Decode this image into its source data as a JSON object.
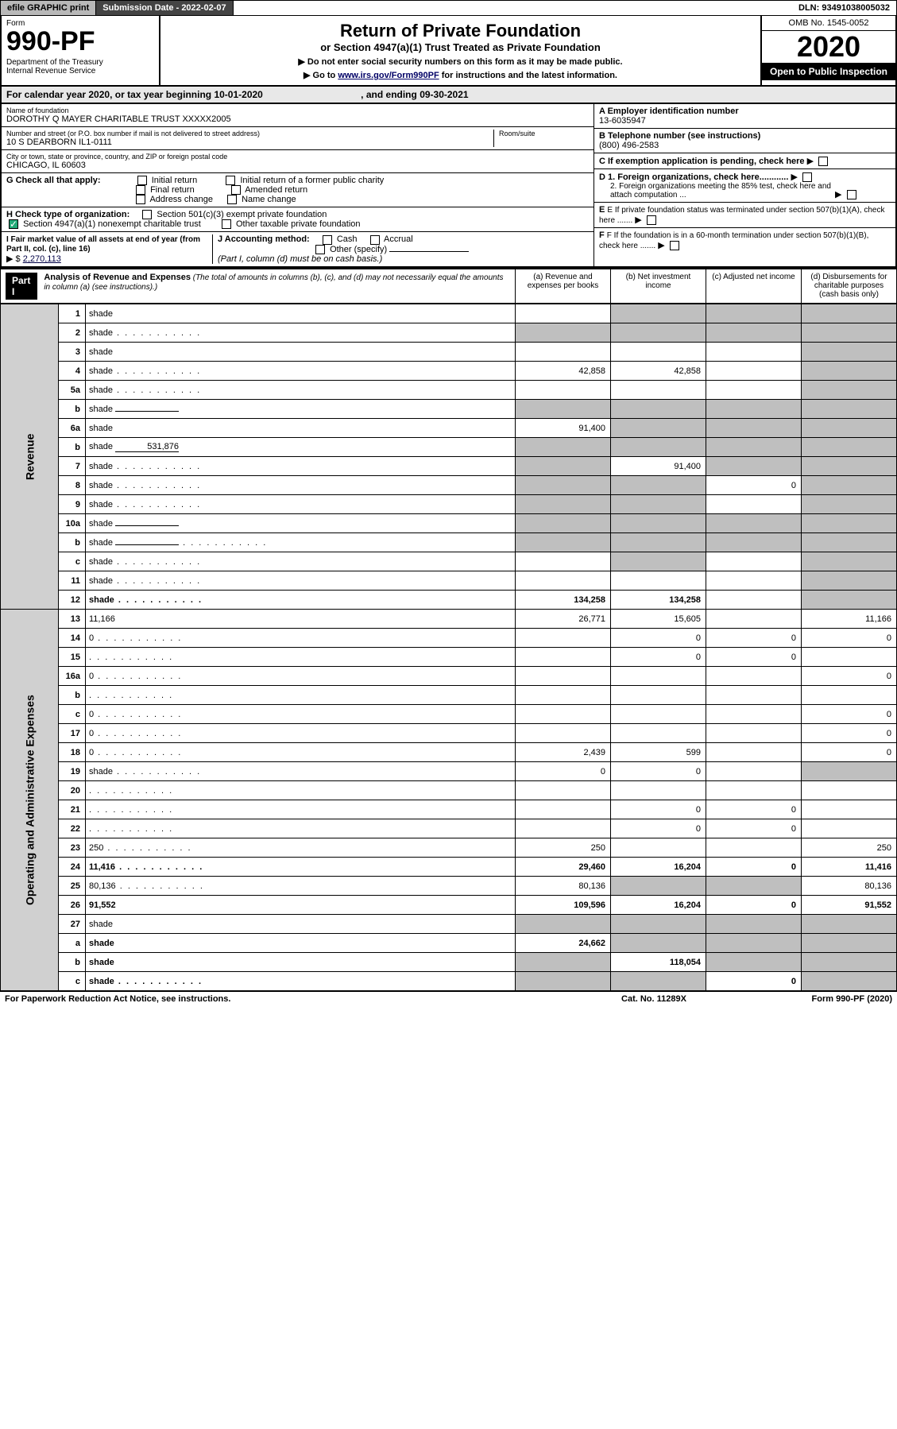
{
  "topbar": {
    "efile": "efile GRAPHIC print",
    "subdate_label": "Submission Date - 2022-02-07",
    "dln_label": "DLN: 93491038005032"
  },
  "header": {
    "form_label": "Form",
    "form_num": "990-PF",
    "dept": "Department of the Treasury\nInternal Revenue Service",
    "title": "Return of Private Foundation",
    "subtitle": "or Section 4947(a)(1) Trust Treated as Private Foundation",
    "instr1": "▶ Do not enter social security numbers on this form as it may be made public.",
    "instr2_pre": "▶ Go to ",
    "instr2_link": "www.irs.gov/Form990PF",
    "instr2_post": " for instructions and the latest information.",
    "omb": "OMB No. 1545-0052",
    "year": "2020",
    "open": "Open to Public Inspection"
  },
  "calendar": {
    "pre": "For calendar year 2020, or tax year beginning ",
    "begin": "10-01-2020",
    "mid": " , and ending ",
    "end": "09-30-2021"
  },
  "foundation": {
    "name_label": "Name of foundation",
    "name": "DOROTHY Q MAYER CHARITABLE TRUST XXXXX2005",
    "addr_label": "Number and street (or P.O. box number if mail is not delivered to street address)",
    "addr": "10 S DEARBORN IL1-0111",
    "room_label": "Room/suite",
    "city_label": "City or town, state or province, country, and ZIP or foreign postal code",
    "city": "CHICAGO, IL  60603",
    "ein_label": "A Employer identification number",
    "ein": "13-6035947",
    "phone_label": "B Telephone number (see instructions)",
    "phone": "(800) 496-2583",
    "c_label": "C If exemption application is pending, check here",
    "d1": "D 1. Foreign organizations, check here............",
    "d2": "2. Foreign organizations meeting the 85% test, check here and attach computation ...",
    "e": "E If private foundation status was terminated under section 507(b)(1)(A), check here .......",
    "f": "F If the foundation is in a 60-month termination under section 507(b)(1)(B), check here .......",
    "g_label": "G Check all that apply:",
    "g_opts": [
      "Initial return",
      "Final return",
      "Address change",
      "Initial return of a former public charity",
      "Amended return",
      "Name change"
    ],
    "h_label": "H Check type of organization:",
    "h1": "Section 501(c)(3) exempt private foundation",
    "h2": "Section 4947(a)(1) nonexempt charitable trust",
    "h3": "Other taxable private foundation",
    "i_label": "I Fair market value of all assets at end of year (from Part II, col. (c), line 16)",
    "i_pre": "▶ $",
    "i_val": "2,270,113",
    "j_label": "J Accounting method:",
    "j_opts": [
      "Cash",
      "Accrual"
    ],
    "j_other": "Other (specify)",
    "j_note": "(Part I, column (d) must be on cash basis.)"
  },
  "part1": {
    "label": "Part I",
    "title": "Analysis of Revenue and Expenses",
    "note": " (The total of amounts in columns (b), (c), and (d) may not necessarily equal the amounts in column (a) (see instructions).)",
    "cols": {
      "a": "(a) Revenue and expenses per books",
      "b": "(b) Net investment income",
      "c": "(c) Adjusted net income",
      "d": "(d) Disbursements for charitable purposes (cash basis only)"
    }
  },
  "side_labels": {
    "rev": "Revenue",
    "exp": "Operating and Administrative Expenses"
  },
  "rows": [
    {
      "n": "1",
      "d": "shade",
      "a": "",
      "b": "shade",
      "c": "shade"
    },
    {
      "n": "2",
      "d": "shade",
      "dots": true,
      "a": "shade",
      "b": "shade",
      "c": "shade"
    },
    {
      "n": "3",
      "d": "shade",
      "a": "",
      "b": "",
      "c": ""
    },
    {
      "n": "4",
      "d": "shade",
      "dots": true,
      "a": "42,858",
      "b": "42,858",
      "c": ""
    },
    {
      "n": "5a",
      "d": "shade",
      "dots": true,
      "a": "",
      "b": "",
      "c": ""
    },
    {
      "n": "b",
      "d": "shade",
      "inline": "",
      "a": "shade",
      "b": "shade",
      "c": "shade"
    },
    {
      "n": "6a",
      "d": "shade",
      "a": "91,400",
      "b": "shade",
      "c": "shade"
    },
    {
      "n": "b",
      "d": "shade",
      "inline": "531,876",
      "a": "shade",
      "b": "shade",
      "c": "shade"
    },
    {
      "n": "7",
      "d": "shade",
      "dots": true,
      "a": "shade",
      "b": "91,400",
      "c": "shade"
    },
    {
      "n": "8",
      "d": "shade",
      "dots": true,
      "a": "shade",
      "b": "shade",
      "c": "0"
    },
    {
      "n": "9",
      "d": "shade",
      "dots": true,
      "a": "shade",
      "b": "shade",
      "c": ""
    },
    {
      "n": "10a",
      "d": "shade",
      "inline": "",
      "a": "shade",
      "b": "shade",
      "c": "shade"
    },
    {
      "n": "b",
      "d": "shade",
      "dots": true,
      "inline": "",
      "a": "shade",
      "b": "shade",
      "c": "shade"
    },
    {
      "n": "c",
      "d": "shade",
      "dots": true,
      "a": "",
      "b": "shade",
      "c": ""
    },
    {
      "n": "11",
      "d": "shade",
      "dots": true,
      "a": "",
      "b": "",
      "c": ""
    },
    {
      "n": "12",
      "d": "shade",
      "dots": true,
      "bold": true,
      "a": "134,258",
      "b": "134,258",
      "c": ""
    }
  ],
  "exp_rows": [
    {
      "n": "13",
      "d": "11,166",
      "a": "26,771",
      "b": "15,605",
      "c": ""
    },
    {
      "n": "14",
      "d": "0",
      "dots": true,
      "a": "",
      "b": "0",
      "c": "0"
    },
    {
      "n": "15",
      "d": "",
      "dots": true,
      "a": "",
      "b": "0",
      "c": "0"
    },
    {
      "n": "16a",
      "d": "0",
      "dots": true,
      "a": "",
      "b": "",
      "c": ""
    },
    {
      "n": "b",
      "d": "",
      "dots": true,
      "a": "",
      "b": "",
      "c": ""
    },
    {
      "n": "c",
      "d": "0",
      "dots": true,
      "a": "",
      "b": "",
      "c": ""
    },
    {
      "n": "17",
      "d": "0",
      "dots": true,
      "a": "",
      "b": "",
      "c": ""
    },
    {
      "n": "18",
      "d": "0",
      "dots": true,
      "a": "2,439",
      "b": "599",
      "c": ""
    },
    {
      "n": "19",
      "d": "shade",
      "dots": true,
      "a": "0",
      "b": "0",
      "c": ""
    },
    {
      "n": "20",
      "d": "",
      "dots": true,
      "a": "",
      "b": "",
      "c": ""
    },
    {
      "n": "21",
      "d": "",
      "dots": true,
      "a": "",
      "b": "0",
      "c": "0"
    },
    {
      "n": "22",
      "d": "",
      "dots": true,
      "a": "",
      "b": "0",
      "c": "0"
    },
    {
      "n": "23",
      "d": "250",
      "dots": true,
      "a": "250",
      "b": "",
      "c": ""
    },
    {
      "n": "24",
      "d": "11,416",
      "dots": true,
      "bold": true,
      "a": "29,460",
      "b": "16,204",
      "c": "0"
    },
    {
      "n": "25",
      "d": "80,136",
      "dots": true,
      "a": "80,136",
      "b": "shade",
      "c": "shade"
    },
    {
      "n": "26",
      "d": "91,552",
      "bold": true,
      "a": "109,596",
      "b": "16,204",
      "c": "0"
    },
    {
      "n": "27",
      "d": "shade",
      "a": "shade",
      "b": "shade",
      "c": "shade"
    },
    {
      "n": "a",
      "d": "shade",
      "bold": true,
      "a": "24,662",
      "b": "shade",
      "c": "shade"
    },
    {
      "n": "b",
      "d": "shade",
      "bold": true,
      "a": "shade",
      "b": "118,054",
      "c": "shade"
    },
    {
      "n": "c",
      "d": "shade",
      "dots": true,
      "bold": true,
      "a": "shade",
      "b": "shade",
      "c": "0"
    }
  ],
  "footer": {
    "left": "For Paperwork Reduction Act Notice, see instructions.",
    "mid": "Cat. No. 11289X",
    "right": "Form 990-PF (2020)"
  }
}
